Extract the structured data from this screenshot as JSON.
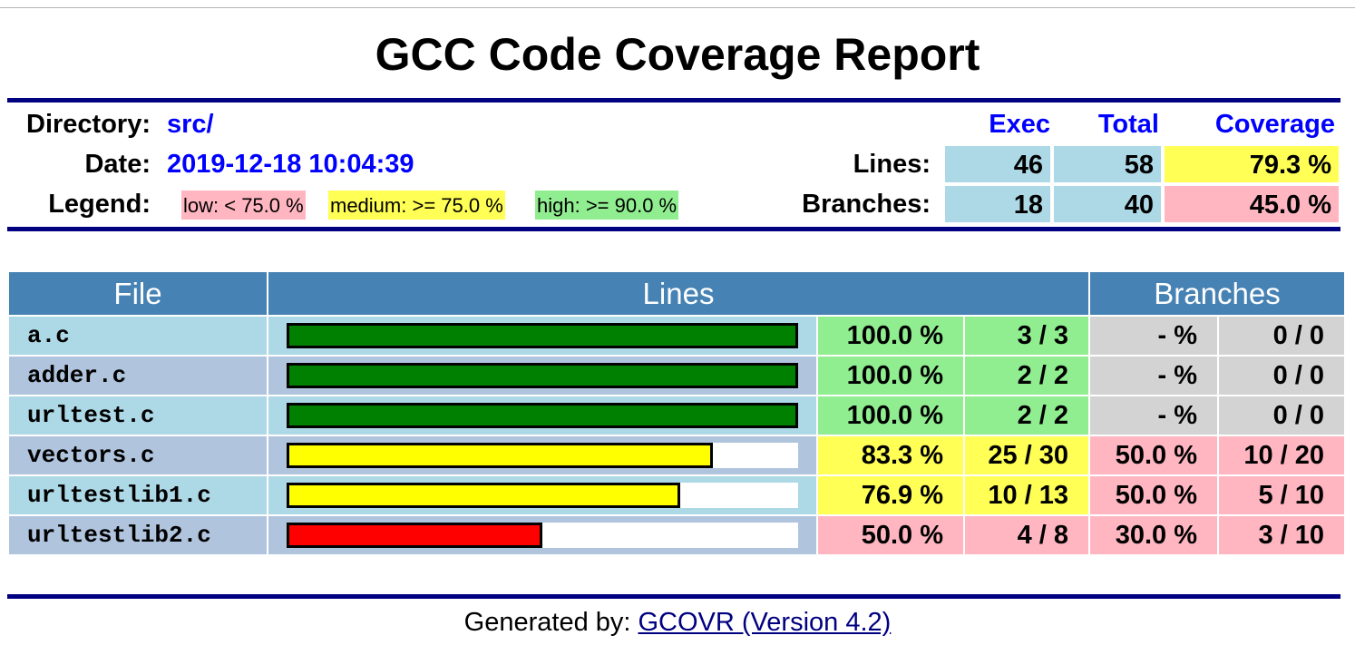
{
  "title": "GCC Code Coverage Report",
  "info": {
    "directory_label": "Directory:",
    "directory_value": "src/",
    "date_label": "Date:",
    "date_value": "2019-12-18 10:04:39",
    "legend_label": "Legend:",
    "legend": {
      "low": "low: < 75.0 %",
      "medium": "medium: >= 75.0 %",
      "high": "high: >= 90.0 %"
    }
  },
  "summary": {
    "headers": {
      "exec": "Exec",
      "total": "Total",
      "coverage": "Coverage"
    },
    "lines": {
      "label": "Lines:",
      "exec": "46",
      "total": "58",
      "coverage": "79.3 %",
      "level": "medium"
    },
    "branches": {
      "label": "Branches:",
      "exec": "18",
      "total": "40",
      "coverage": "45.0 %",
      "level": "low"
    }
  },
  "table": {
    "headers": {
      "file": "File",
      "lines": "Lines",
      "branches": "Branches"
    },
    "rows": [
      {
        "file": "a.c",
        "bar_pct": 100.0,
        "bar_color": "#008000",
        "line_pct": "100.0 %",
        "line_count": "3 / 3",
        "line_level": "high",
        "branch_pct": "- %",
        "branch_count": "0 / 0",
        "branch_level": "none"
      },
      {
        "file": "adder.c",
        "bar_pct": 100.0,
        "bar_color": "#008000",
        "line_pct": "100.0 %",
        "line_count": "2 / 2",
        "line_level": "high",
        "branch_pct": "- %",
        "branch_count": "0 / 0",
        "branch_level": "none"
      },
      {
        "file": "urltest.c",
        "bar_pct": 100.0,
        "bar_color": "#008000",
        "line_pct": "100.0 %",
        "line_count": "2 / 2",
        "line_level": "high",
        "branch_pct": "- %",
        "branch_count": "0 / 0",
        "branch_level": "none"
      },
      {
        "file": "vectors.c",
        "bar_pct": 83.3,
        "bar_color": "#ffff00",
        "line_pct": "83.3 %",
        "line_count": "25 / 30",
        "line_level": "medium",
        "branch_pct": "50.0 %",
        "branch_count": "10 / 20",
        "branch_level": "low"
      },
      {
        "file": "urltestlib1.c",
        "bar_pct": 76.9,
        "bar_color": "#ffff00",
        "line_pct": "76.9 %",
        "line_count": "10 / 13",
        "line_level": "medium",
        "branch_pct": "50.0 %",
        "branch_count": "5 / 10",
        "branch_level": "low"
      },
      {
        "file": "urltestlib2.c",
        "bar_pct": 50.0,
        "bar_color": "#ff0000",
        "line_pct": "50.0 %",
        "line_count": "4 / 8",
        "line_level": "low",
        "branch_pct": "30.0 %",
        "branch_count": "3 / 10",
        "branch_level": "low"
      }
    ]
  },
  "footer": {
    "prefix": "Generated by: ",
    "link_text": "GCOVR (Version 4.2)"
  },
  "colors": {
    "rule": "#000080",
    "header_bg": "#4682b4",
    "high": "#90ee90",
    "medium": "#ffff55",
    "low": "#ffb6c1",
    "none": "#d3d3d3",
    "link": "#0000ff"
  }
}
